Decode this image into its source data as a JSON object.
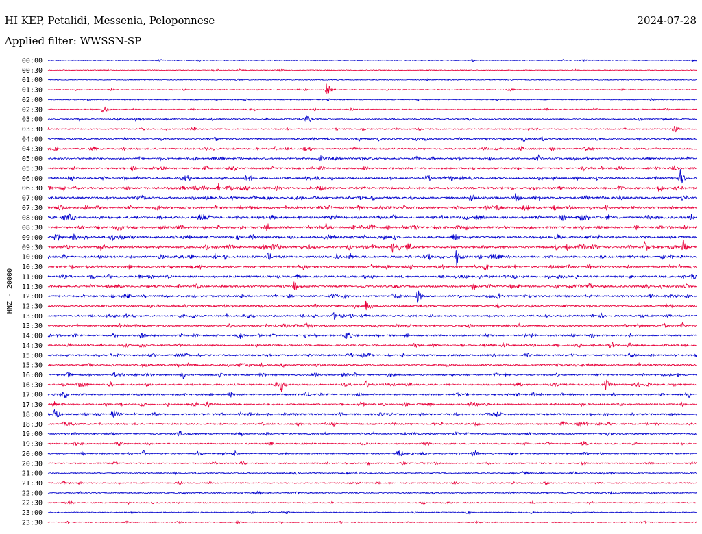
{
  "header": {
    "station": "HI KEP, Petalidi, Messenia, Peloponnese",
    "date": "2024-07-28",
    "filter": "Applied filter: WWSSN-SP"
  },
  "chart_data": {
    "type": "helicorder",
    "title": "HI KEP, Petalidi, Messenia, Peloponnese",
    "ylabel": "HNZ - 20000",
    "date": "2024-07-28",
    "filter": "WWSSN-SP",
    "trace_colors": [
      "#0000cc",
      "#e8003a"
    ],
    "row_labels": [
      "00:00",
      "00:30",
      "01:00",
      "01:30",
      "02:00",
      "02:30",
      "03:00",
      "03:30",
      "04:00",
      "04:30",
      "05:00",
      "05:30",
      "06:00",
      "06:30",
      "07:00",
      "07:30",
      "08:00",
      "08:30",
      "09:00",
      "09:30",
      "10:00",
      "10:30",
      "11:00",
      "11:30",
      "12:00",
      "12:30",
      "13:00",
      "13:30",
      "14:00",
      "14:30",
      "15:00",
      "15:30",
      "16:00",
      "16:30",
      "17:00",
      "17:30",
      "18:00",
      "18:30",
      "19:00",
      "19:30",
      "20:00",
      "20:30",
      "21:00",
      "21:30",
      "22:00",
      "22:30",
      "23:00",
      "23:30"
    ],
    "noise_level": [
      0.15,
      0.15,
      0.15,
      0.2,
      0.2,
      0.25,
      0.4,
      0.4,
      0.6,
      0.6,
      0.7,
      0.7,
      0.8,
      0.9,
      0.9,
      1.0,
      1.0,
      1.0,
      1.0,
      1.0,
      0.9,
      0.9,
      0.8,
      0.8,
      0.8,
      0.7,
      0.7,
      0.7,
      0.7,
      0.7,
      0.7,
      0.7,
      0.7,
      0.7,
      0.7,
      0.7,
      0.7,
      0.6,
      0.6,
      0.5,
      0.5,
      0.4,
      0.35,
      0.35,
      0.35,
      0.3,
      0.25,
      0.25
    ],
    "events": [
      {
        "row": 3,
        "t": 0.43,
        "amp": 12
      },
      {
        "row": 5,
        "t": 0.085,
        "amp": 8
      },
      {
        "row": 7,
        "t": 0.965,
        "amp": 9
      },
      {
        "row": 12,
        "t": 0.975,
        "amp": 12
      },
      {
        "row": 14,
        "t": 0.72,
        "amp": 8
      },
      {
        "row": 19,
        "t": 0.92,
        "amp": 9
      },
      {
        "row": 19,
        "t": 0.98,
        "amp": 8
      },
      {
        "row": 20,
        "t": 0.63,
        "amp": 13
      },
      {
        "row": 23,
        "t": 0.38,
        "amp": 8
      },
      {
        "row": 24,
        "t": 0.57,
        "amp": 10
      },
      {
        "row": 25,
        "t": 0.49,
        "amp": 8
      },
      {
        "row": 28,
        "t": 0.46,
        "amp": 8
      },
      {
        "row": 33,
        "t": 0.36,
        "amp": 9
      },
      {
        "row": 33,
        "t": 0.49,
        "amp": 7
      },
      {
        "row": 33,
        "t": 0.86,
        "amp": 9
      },
      {
        "row": 36,
        "t": 0.01,
        "amp": 8
      },
      {
        "row": 36,
        "t": 0.1,
        "amp": 10
      },
      {
        "row": 40,
        "t": 0.54,
        "amp": 9
      }
    ]
  }
}
